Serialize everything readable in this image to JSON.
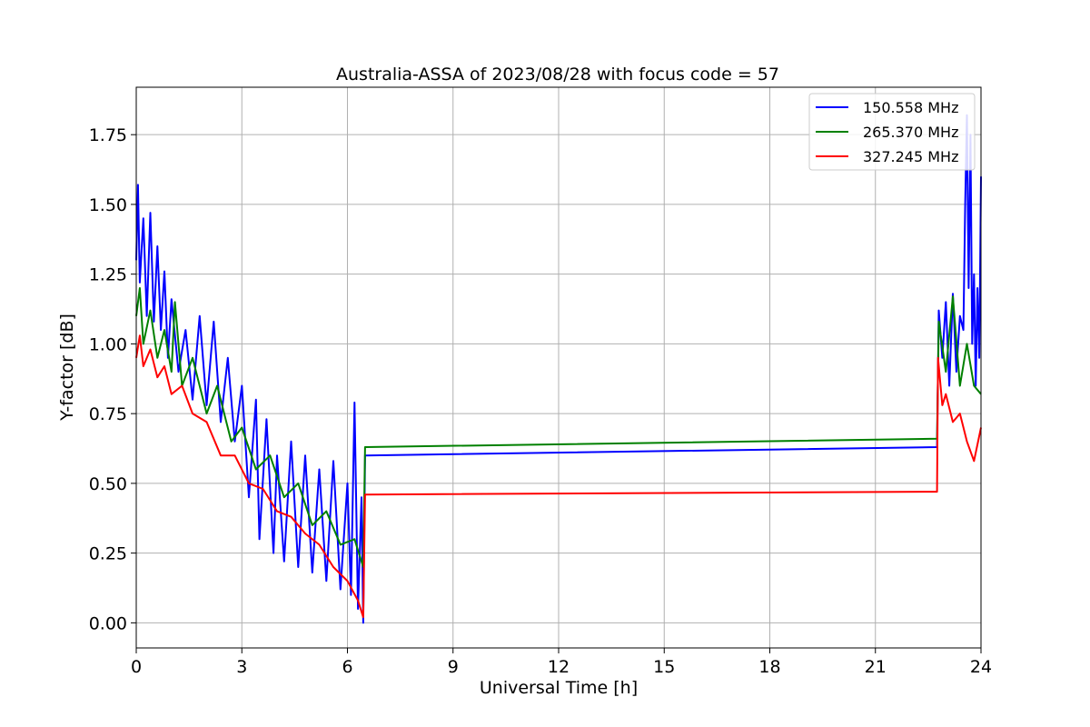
{
  "chart_data": {
    "type": "line",
    "title": "Australia-ASSA of 2023/08/28 with focus code = 57",
    "xlabel": "Universal Time [h]",
    "ylabel": "Y-factor [dB]",
    "xlim": [
      0,
      24
    ],
    "ylim": [
      -0.09,
      1.92
    ],
    "xticks": [
      0,
      3,
      6,
      9,
      12,
      15,
      18,
      21,
      24
    ],
    "xtick_labels": [
      "0",
      "3",
      "6",
      "9",
      "12",
      "15",
      "18",
      "21",
      "24"
    ],
    "yticks": [
      0.0,
      0.25,
      0.5,
      0.75,
      1.0,
      1.25,
      1.5,
      1.75
    ],
    "ytick_labels": [
      "0.00",
      "0.25",
      "0.50",
      "0.75",
      "1.00",
      "1.25",
      "1.50",
      "1.75"
    ],
    "grid": true,
    "legend_position": "top-right",
    "series": [
      {
        "name": "150.558 MHz",
        "color": "#0000ff",
        "points": [
          [
            0.0,
            1.3
          ],
          [
            0.05,
            1.57
          ],
          [
            0.1,
            1.22
          ],
          [
            0.2,
            1.45
          ],
          [
            0.3,
            1.1
          ],
          [
            0.4,
            1.47
          ],
          [
            0.5,
            1.08
          ],
          [
            0.6,
            1.35
          ],
          [
            0.7,
            1.05
          ],
          [
            0.8,
            1.26
          ],
          [
            0.9,
            0.95
          ],
          [
            1.0,
            1.16
          ],
          [
            1.2,
            0.9
          ],
          [
            1.4,
            1.05
          ],
          [
            1.6,
            0.8
          ],
          [
            1.8,
            1.1
          ],
          [
            2.0,
            0.78
          ],
          [
            2.2,
            1.08
          ],
          [
            2.4,
            0.72
          ],
          [
            2.6,
            0.95
          ],
          [
            2.8,
            0.65
          ],
          [
            3.0,
            0.85
          ],
          [
            3.2,
            0.45
          ],
          [
            3.4,
            0.8
          ],
          [
            3.5,
            0.3
          ],
          [
            3.7,
            0.73
          ],
          [
            3.9,
            0.25
          ],
          [
            4.0,
            0.6
          ],
          [
            4.2,
            0.22
          ],
          [
            4.4,
            0.65
          ],
          [
            4.6,
            0.2
          ],
          [
            4.8,
            0.6
          ],
          [
            5.0,
            0.18
          ],
          [
            5.2,
            0.55
          ],
          [
            5.4,
            0.15
          ],
          [
            5.6,
            0.58
          ],
          [
            5.8,
            0.12
          ],
          [
            6.0,
            0.5
          ],
          [
            6.1,
            0.1
          ],
          [
            6.2,
            0.79
          ],
          [
            6.3,
            0.05
          ],
          [
            6.4,
            0.45
          ],
          [
            6.45,
            0.0
          ],
          [
            6.5,
            0.6
          ],
          [
            22.75,
            0.63
          ],
          [
            22.8,
            1.12
          ],
          [
            22.9,
            0.95
          ],
          [
            23.0,
            1.15
          ],
          [
            23.1,
            0.85
          ],
          [
            23.2,
            1.18
          ],
          [
            23.3,
            0.9
          ],
          [
            23.4,
            1.1
          ],
          [
            23.5,
            1.05
          ],
          [
            23.55,
            1.5
          ],
          [
            23.6,
            1.82
          ],
          [
            23.65,
            1.2
          ],
          [
            23.7,
            1.75
          ],
          [
            23.75,
            1.0
          ],
          [
            23.8,
            1.25
          ],
          [
            23.85,
            0.85
          ],
          [
            23.9,
            1.2
          ],
          [
            23.95,
            0.95
          ],
          [
            24.0,
            1.6
          ]
        ]
      },
      {
        "name": "265.370 MHz",
        "color": "#008000",
        "points": [
          [
            0.0,
            1.1
          ],
          [
            0.1,
            1.2
          ],
          [
            0.2,
            1.0
          ],
          [
            0.4,
            1.12
          ],
          [
            0.6,
            0.95
          ],
          [
            0.8,
            1.05
          ],
          [
            1.0,
            0.9
          ],
          [
            1.1,
            1.15
          ],
          [
            1.3,
            0.85
          ],
          [
            1.6,
            0.95
          ],
          [
            2.0,
            0.75
          ],
          [
            2.3,
            0.85
          ],
          [
            2.7,
            0.65
          ],
          [
            3.0,
            0.7
          ],
          [
            3.4,
            0.55
          ],
          [
            3.8,
            0.6
          ],
          [
            4.2,
            0.45
          ],
          [
            4.6,
            0.5
          ],
          [
            5.0,
            0.35
          ],
          [
            5.4,
            0.4
          ],
          [
            5.8,
            0.28
          ],
          [
            6.2,
            0.3
          ],
          [
            6.45,
            0.2
          ],
          [
            6.5,
            0.63
          ],
          [
            22.75,
            0.66
          ],
          [
            22.8,
            1.08
          ],
          [
            23.0,
            0.9
          ],
          [
            23.2,
            1.17
          ],
          [
            23.4,
            0.85
          ],
          [
            23.6,
            1.0
          ],
          [
            23.8,
            0.85
          ],
          [
            24.0,
            0.82
          ]
        ]
      },
      {
        "name": "327.245 MHz",
        "color": "#ff0000",
        "points": [
          [
            0.0,
            0.95
          ],
          [
            0.1,
            1.03
          ],
          [
            0.2,
            0.92
          ],
          [
            0.4,
            0.98
          ],
          [
            0.6,
            0.88
          ],
          [
            0.8,
            0.92
          ],
          [
            1.0,
            0.82
          ],
          [
            1.3,
            0.85
          ],
          [
            1.6,
            0.75
          ],
          [
            2.0,
            0.72
          ],
          [
            2.4,
            0.6
          ],
          [
            2.8,
            0.6
          ],
          [
            3.2,
            0.5
          ],
          [
            3.6,
            0.48
          ],
          [
            4.0,
            0.4
          ],
          [
            4.4,
            0.38
          ],
          [
            4.8,
            0.32
          ],
          [
            5.2,
            0.28
          ],
          [
            5.6,
            0.2
          ],
          [
            6.0,
            0.15
          ],
          [
            6.3,
            0.08
          ],
          [
            6.45,
            0.02
          ],
          [
            6.5,
            0.46
          ],
          [
            22.75,
            0.47
          ],
          [
            22.78,
            0.95
          ],
          [
            22.9,
            0.78
          ],
          [
            23.0,
            0.82
          ],
          [
            23.2,
            0.72
          ],
          [
            23.4,
            0.75
          ],
          [
            23.6,
            0.65
          ],
          [
            23.8,
            0.58
          ],
          [
            24.0,
            0.7
          ]
        ]
      }
    ]
  }
}
